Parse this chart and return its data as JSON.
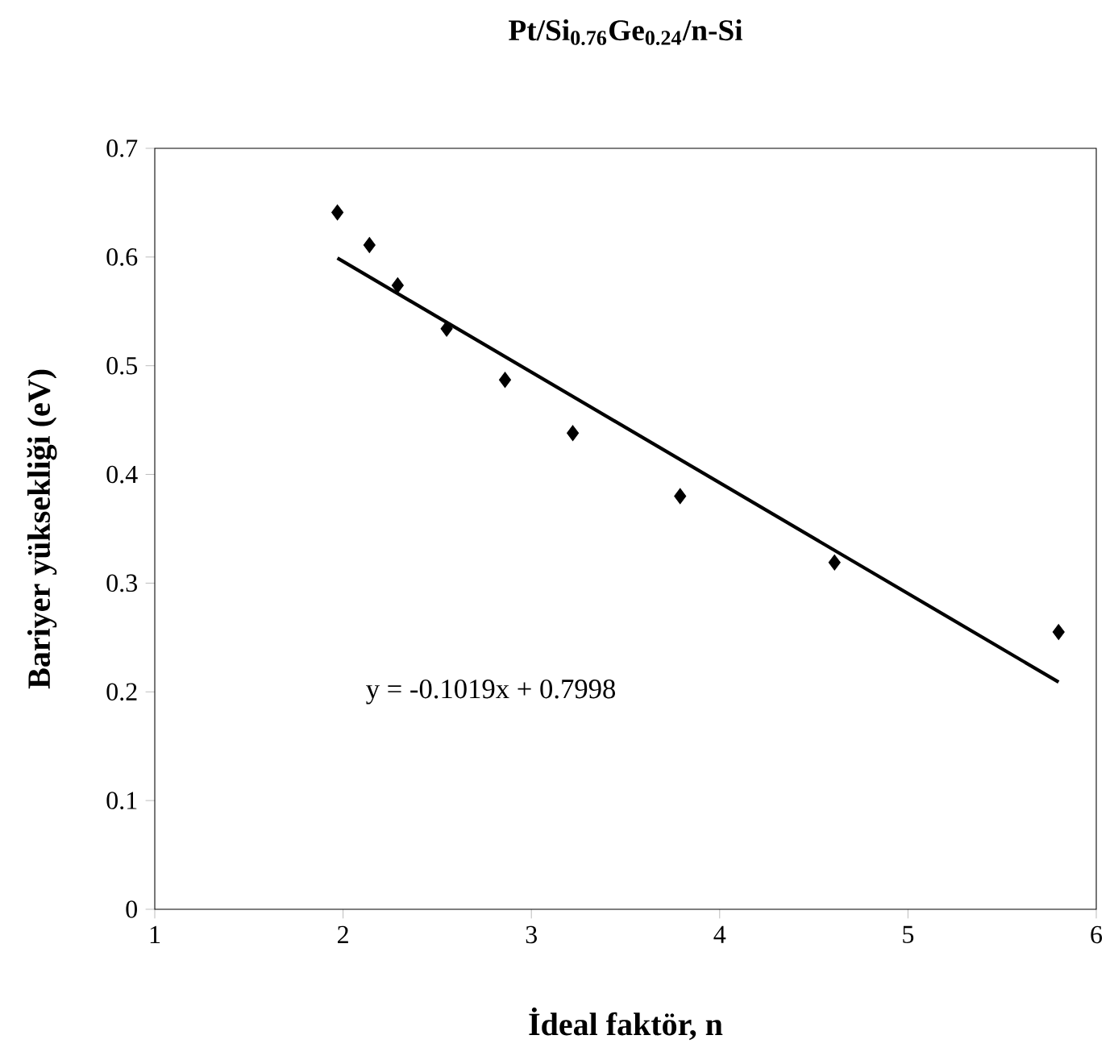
{
  "chart_data": {
    "type": "scatter",
    "title": "**Pt/Si$_{0.76}$Ge$_{0.24}$/n-Si**",
    "xlabel": "İdeal faktör, n",
    "ylabel": "Bariyer yüksekliği (eV)",
    "series": [
      {
        "color": "#000000",
        "marker": "diamond",
        "x": [
          1.97,
          2.14,
          2.29,
          2.55,
          2.86,
          3.22,
          3.79,
          4.61,
          5.8
        ],
        "values": [
          0.641,
          0.611,
          0.574,
          0.534,
          0.487,
          0.438,
          0.38,
          0.319,
          0.255
        ]
      },
      {
        "type": "line",
        "color": "#000000",
        "marker": "none",
        "line_style": "solid",
        "x": [
          1.97,
          5.8
        ],
        "values": [
          0.599,
          0.209
        ]
      }
    ],
    "annotations": [
      "y = -0.1019x + 0.7998"
    ],
    "xlim": [
      1,
      6
    ],
    "xticks": [
      1,
      2,
      3,
      4,
      5,
      6
    ],
    "ylim": [
      0,
      0.7
    ],
    "yticks": [
      0,
      0.1,
      0.2,
      0.3,
      0.4,
      0.5,
      0.6,
      0.7
    ],
    "grid": false
  }
}
